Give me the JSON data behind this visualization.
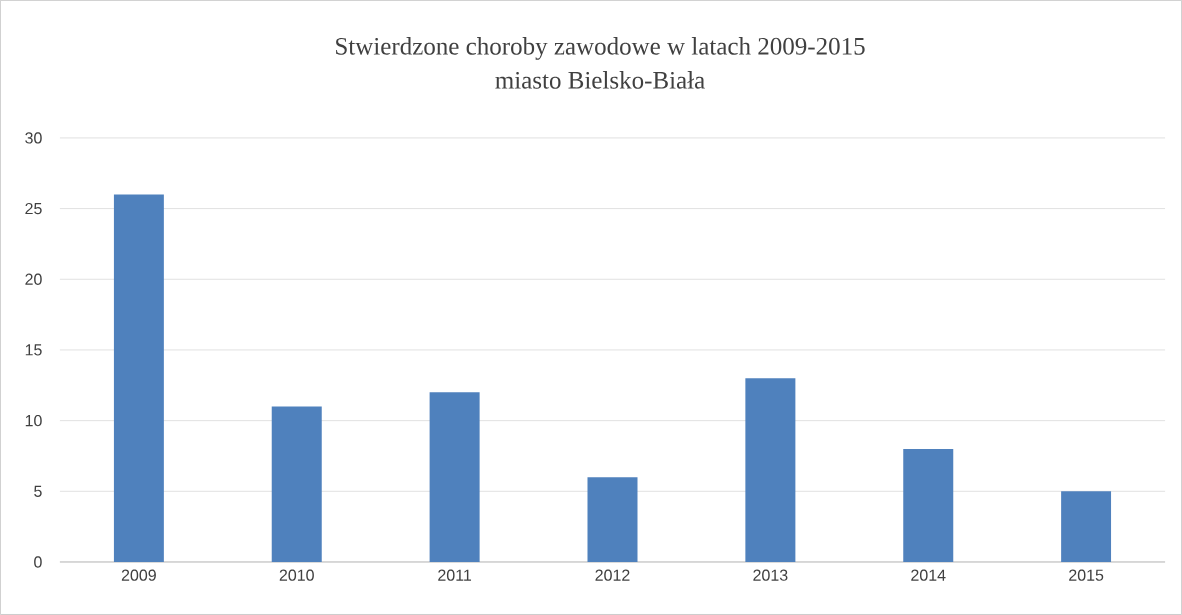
{
  "chart_data": {
    "type": "bar",
    "title": "Stwierdzone choroby zawodowe w latach 2009-2015",
    "subtitle": "miasto Bielsko-Biała",
    "categories": [
      "2009",
      "2010",
      "2011",
      "2012",
      "2013",
      "2014",
      "2015"
    ],
    "values": [
      26,
      11,
      12,
      6,
      13,
      8,
      5
    ],
    "color": "#4f81bd",
    "ylim": [
      0,
      30
    ],
    "yticks": [
      0,
      5,
      10,
      15,
      20,
      25,
      30
    ],
    "grid": "y"
  }
}
